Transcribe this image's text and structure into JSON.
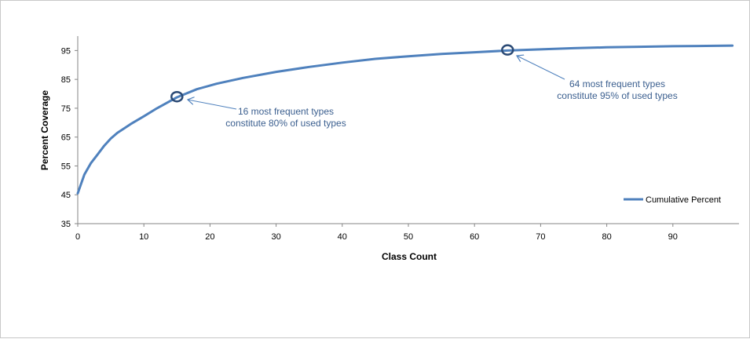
{
  "chart_data": {
    "type": "line",
    "title": "",
    "xlabel": "Class Count",
    "ylabel": "Percent Coverage",
    "xlim": [
      0,
      100
    ],
    "ylim": [
      35,
      100
    ],
    "x_ticks": [
      0,
      10,
      20,
      30,
      40,
      50,
      60,
      70,
      80,
      90
    ],
    "y_ticks": [
      35,
      45,
      55,
      65,
      75,
      85,
      95
    ],
    "grid": false,
    "legend_position": "right",
    "series": [
      {
        "name": "Cumulative Percent",
        "color": "#4f81bd",
        "x": [
          0,
          1,
          2,
          3,
          4,
          5,
          6,
          7,
          8,
          10,
          12,
          15,
          18,
          21,
          25,
          30,
          35,
          40,
          45,
          50,
          55,
          60,
          65,
          70,
          75,
          80,
          85,
          90,
          95,
          99
        ],
        "y": [
          45.5,
          52,
          56,
          59,
          62,
          64.5,
          66.5,
          68,
          69.5,
          72.2,
          75,
          78.8,
          81.6,
          83.5,
          85.5,
          87.6,
          89.3,
          90.8,
          92.1,
          93.0,
          93.8,
          94.4,
          95.0,
          95.4,
          95.8,
          96.1,
          96.3,
          96.5,
          96.6,
          96.7
        ]
      }
    ],
    "highlights": [
      {
        "x": 15,
        "y": 79
      },
      {
        "x": 65,
        "y": 95.2
      }
    ],
    "annotations": [
      {
        "lines": [
          "16 most frequent types",
          "constitute 80% of used types"
        ]
      },
      {
        "lines": [
          "64 most frequent types",
          "constitute 95% of used types"
        ]
      }
    ]
  }
}
